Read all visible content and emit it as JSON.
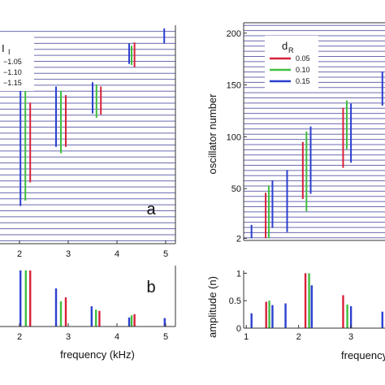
{
  "chart_data": [
    {
      "id": "a",
      "type": "line",
      "panel_label": "a",
      "xlabel": "",
      "ylabel": "",
      "xlim": [
        1.6,
        5.2
      ],
      "xticks": [
        2,
        3,
        4,
        5
      ],
      "x_tick_labels": [
        "2",
        "3",
        "4",
        "5"
      ],
      "grid_lines": 36,
      "legend": {
        "title_main": "I",
        "title_sub": "I",
        "position": "top-left",
        "entries": [
          "−1.05",
          "−1.10",
          "−1.15"
        ]
      },
      "colors": {
        "blue": "#2b3fd0",
        "green": "#3fbf3f",
        "red": "#d8213a",
        "grid": "#6a6ab0"
      },
      "series": [
        {
          "color": "blue",
          "segments": [
            [
              2.02,
              0.175,
              0.735
            ],
            [
              2.75,
              0.45,
              0.73
            ],
            [
              3.5,
              0.605,
              0.75
            ],
            [
              4.25,
              0.835,
              0.93
            ],
            [
              4.97,
              0.93,
              1.0
            ]
          ]
        },
        {
          "color": "green",
          "segments": [
            [
              2.12,
              0.2,
              0.72
            ],
            [
              2.85,
              0.42,
              0.71
            ],
            [
              3.58,
              0.585,
              0.74
            ],
            [
              4.3,
              0.83,
              0.92
            ]
          ]
        },
        {
          "color": "red",
          "segments": [
            [
              2.22,
              0.285,
              0.655
            ],
            [
              2.95,
              0.45,
              0.69
            ],
            [
              3.67,
              0.6,
              0.73
            ],
            [
              4.36,
              0.82,
              0.935
            ]
          ]
        }
      ]
    },
    {
      "id": "b",
      "type": "bar",
      "panel_label": "b",
      "xlabel": "frequency (kHz)",
      "ylabel": "",
      "xlim": [
        1.6,
        5.2
      ],
      "ylim": [
        0,
        1
      ],
      "xticks": [
        2,
        3,
        4,
        5
      ],
      "x_tick_labels": [
        "2",
        "3",
        "4",
        "5"
      ],
      "series": [
        {
          "color": "blue",
          "points": [
            [
              2.02,
              1.0
            ],
            [
              2.75,
              0.68
            ],
            [
              3.48,
              0.36
            ],
            [
              4.25,
              0.16
            ],
            [
              4.98,
              0.15
            ]
          ]
        },
        {
          "color": "green",
          "points": [
            [
              2.13,
              1.0
            ],
            [
              2.85,
              0.45
            ],
            [
              3.57,
              0.3
            ],
            [
              4.3,
              0.2
            ]
          ]
        },
        {
          "color": "red",
          "points": [
            [
              2.22,
              1.0
            ],
            [
              2.95,
              0.52
            ],
            [
              3.64,
              0.28
            ],
            [
              4.36,
              0.22
            ]
          ]
        }
      ]
    },
    {
      "id": "c",
      "type": "line",
      "panel_label": "",
      "xlabel": "",
      "ylabel": "oscillator number",
      "xlim": [
        0.95,
        3.65
      ],
      "ylim": [
        0,
        210
      ],
      "yticks": [
        2,
        50,
        100,
        150,
        200
      ],
      "y_tick_labels": [
        "2",
        "50",
        "100",
        "150",
        "200"
      ],
      "grid_lines": 42,
      "legend": {
        "title_main": "d",
        "title_sub": "R",
        "position": "top-left",
        "entries": [
          "0.05",
          "0.10",
          "0.15"
        ]
      },
      "series": [
        {
          "color": "red",
          "segments": [
            [
              1.37,
              2,
              46
            ],
            [
              2.08,
              40,
              95
            ],
            [
              2.85,
              70,
              128
            ]
          ]
        },
        {
          "color": "green",
          "segments": [
            [
              1.43,
              2,
              53
            ],
            [
              2.15,
              28,
              105
            ],
            [
              2.92,
              88,
              135
            ]
          ]
        },
        {
          "color": "blue",
          "segments": [
            [
              1.1,
              2,
              15
            ],
            [
              1.5,
              12,
              58
            ],
            [
              1.78,
              8,
              68
            ],
            [
              2.23,
              45,
              110
            ],
            [
              3.0,
              75,
              132
            ],
            [
              3.6,
              130,
              163
            ]
          ]
        }
      ]
    },
    {
      "id": "d",
      "type": "bar",
      "panel_label": "",
      "xlabel": "frequency (kHz)",
      "ylabel": "amplitude (n)",
      "xlim": [
        0.95,
        3.65
      ],
      "ylim": [
        0,
        1.05
      ],
      "xticks": [
        1,
        2,
        3
      ],
      "x_tick_labels": [
        "1",
        "2",
        "3"
      ],
      "yticks": [
        0,
        0.5,
        1
      ],
      "y_tick_labels": [
        "0",
        "0.5",
        "1"
      ],
      "series": [
        {
          "color": "red",
          "points": [
            [
              1.38,
              0.48
            ],
            [
              2.13,
              1.0
            ],
            [
              2.85,
              0.6
            ]
          ]
        },
        {
          "color": "green",
          "points": [
            [
              1.44,
              0.5
            ],
            [
              2.2,
              1.0
            ],
            [
              2.93,
              0.43
            ]
          ]
        },
        {
          "color": "blue",
          "points": [
            [
              1.1,
              0.27
            ],
            [
              1.5,
              0.42
            ],
            [
              1.75,
              0.45
            ],
            [
              2.25,
              0.78
            ],
            [
              3.0,
              0.4
            ],
            [
              3.6,
              0.3
            ]
          ]
        }
      ]
    }
  ]
}
